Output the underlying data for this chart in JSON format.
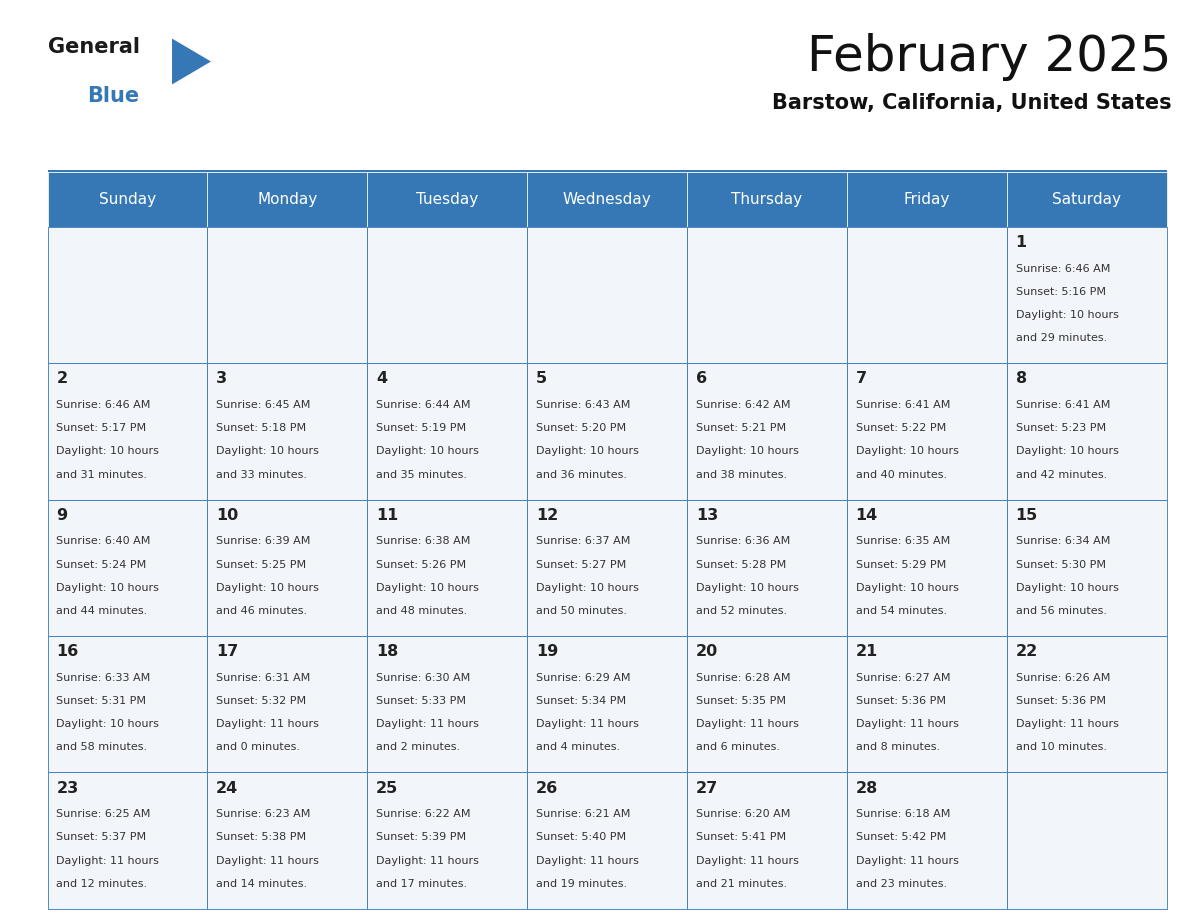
{
  "title": "February 2025",
  "subtitle": "Barstow, California, United States",
  "header_color": "#3578b5",
  "header_text_color": "#ffffff",
  "cell_bg_color": "#f2f6fa",
  "border_color": "#3578b5",
  "title_color": "#111111",
  "subtitle_color": "#111111",
  "cell_text_color": "#333333",
  "days_of_week": [
    "Sunday",
    "Monday",
    "Tuesday",
    "Wednesday",
    "Thursday",
    "Friday",
    "Saturday"
  ],
  "calendar": [
    [
      null,
      null,
      null,
      null,
      null,
      null,
      {
        "day": 1,
        "sunrise": "6:46 AM",
        "sunset": "5:16 PM",
        "daylight_hours": 10,
        "daylight_minutes": 29
      }
    ],
    [
      {
        "day": 2,
        "sunrise": "6:46 AM",
        "sunset": "5:17 PM",
        "daylight_hours": 10,
        "daylight_minutes": 31
      },
      {
        "day": 3,
        "sunrise": "6:45 AM",
        "sunset": "5:18 PM",
        "daylight_hours": 10,
        "daylight_minutes": 33
      },
      {
        "day": 4,
        "sunrise": "6:44 AM",
        "sunset": "5:19 PM",
        "daylight_hours": 10,
        "daylight_minutes": 35
      },
      {
        "day": 5,
        "sunrise": "6:43 AM",
        "sunset": "5:20 PM",
        "daylight_hours": 10,
        "daylight_minutes": 36
      },
      {
        "day": 6,
        "sunrise": "6:42 AM",
        "sunset": "5:21 PM",
        "daylight_hours": 10,
        "daylight_minutes": 38
      },
      {
        "day": 7,
        "sunrise": "6:41 AM",
        "sunset": "5:22 PM",
        "daylight_hours": 10,
        "daylight_minutes": 40
      },
      {
        "day": 8,
        "sunrise": "6:41 AM",
        "sunset": "5:23 PM",
        "daylight_hours": 10,
        "daylight_minutes": 42
      }
    ],
    [
      {
        "day": 9,
        "sunrise": "6:40 AM",
        "sunset": "5:24 PM",
        "daylight_hours": 10,
        "daylight_minutes": 44
      },
      {
        "day": 10,
        "sunrise": "6:39 AM",
        "sunset": "5:25 PM",
        "daylight_hours": 10,
        "daylight_minutes": 46
      },
      {
        "day": 11,
        "sunrise": "6:38 AM",
        "sunset": "5:26 PM",
        "daylight_hours": 10,
        "daylight_minutes": 48
      },
      {
        "day": 12,
        "sunrise": "6:37 AM",
        "sunset": "5:27 PM",
        "daylight_hours": 10,
        "daylight_minutes": 50
      },
      {
        "day": 13,
        "sunrise": "6:36 AM",
        "sunset": "5:28 PM",
        "daylight_hours": 10,
        "daylight_minutes": 52
      },
      {
        "day": 14,
        "sunrise": "6:35 AM",
        "sunset": "5:29 PM",
        "daylight_hours": 10,
        "daylight_minutes": 54
      },
      {
        "day": 15,
        "sunrise": "6:34 AM",
        "sunset": "5:30 PM",
        "daylight_hours": 10,
        "daylight_minutes": 56
      }
    ],
    [
      {
        "day": 16,
        "sunrise": "6:33 AM",
        "sunset": "5:31 PM",
        "daylight_hours": 10,
        "daylight_minutes": 58
      },
      {
        "day": 17,
        "sunrise": "6:31 AM",
        "sunset": "5:32 PM",
        "daylight_hours": 11,
        "daylight_minutes": 0
      },
      {
        "day": 18,
        "sunrise": "6:30 AM",
        "sunset": "5:33 PM",
        "daylight_hours": 11,
        "daylight_minutes": 2
      },
      {
        "day": 19,
        "sunrise": "6:29 AM",
        "sunset": "5:34 PM",
        "daylight_hours": 11,
        "daylight_minutes": 4
      },
      {
        "day": 20,
        "sunrise": "6:28 AM",
        "sunset": "5:35 PM",
        "daylight_hours": 11,
        "daylight_minutes": 6
      },
      {
        "day": 21,
        "sunrise": "6:27 AM",
        "sunset": "5:36 PM",
        "daylight_hours": 11,
        "daylight_minutes": 8
      },
      {
        "day": 22,
        "sunrise": "6:26 AM",
        "sunset": "5:36 PM",
        "daylight_hours": 11,
        "daylight_minutes": 10
      }
    ],
    [
      {
        "day": 23,
        "sunrise": "6:25 AM",
        "sunset": "5:37 PM",
        "daylight_hours": 11,
        "daylight_minutes": 12
      },
      {
        "day": 24,
        "sunrise": "6:23 AM",
        "sunset": "5:38 PM",
        "daylight_hours": 11,
        "daylight_minutes": 14
      },
      {
        "day": 25,
        "sunrise": "6:22 AM",
        "sunset": "5:39 PM",
        "daylight_hours": 11,
        "daylight_minutes": 17
      },
      {
        "day": 26,
        "sunrise": "6:21 AM",
        "sunset": "5:40 PM",
        "daylight_hours": 11,
        "daylight_minutes": 19
      },
      {
        "day": 27,
        "sunrise": "6:20 AM",
        "sunset": "5:41 PM",
        "daylight_hours": 11,
        "daylight_minutes": 21
      },
      {
        "day": 28,
        "sunrise": "6:18 AM",
        "sunset": "5:42 PM",
        "daylight_hours": 11,
        "daylight_minutes": 23
      },
      null
    ]
  ]
}
